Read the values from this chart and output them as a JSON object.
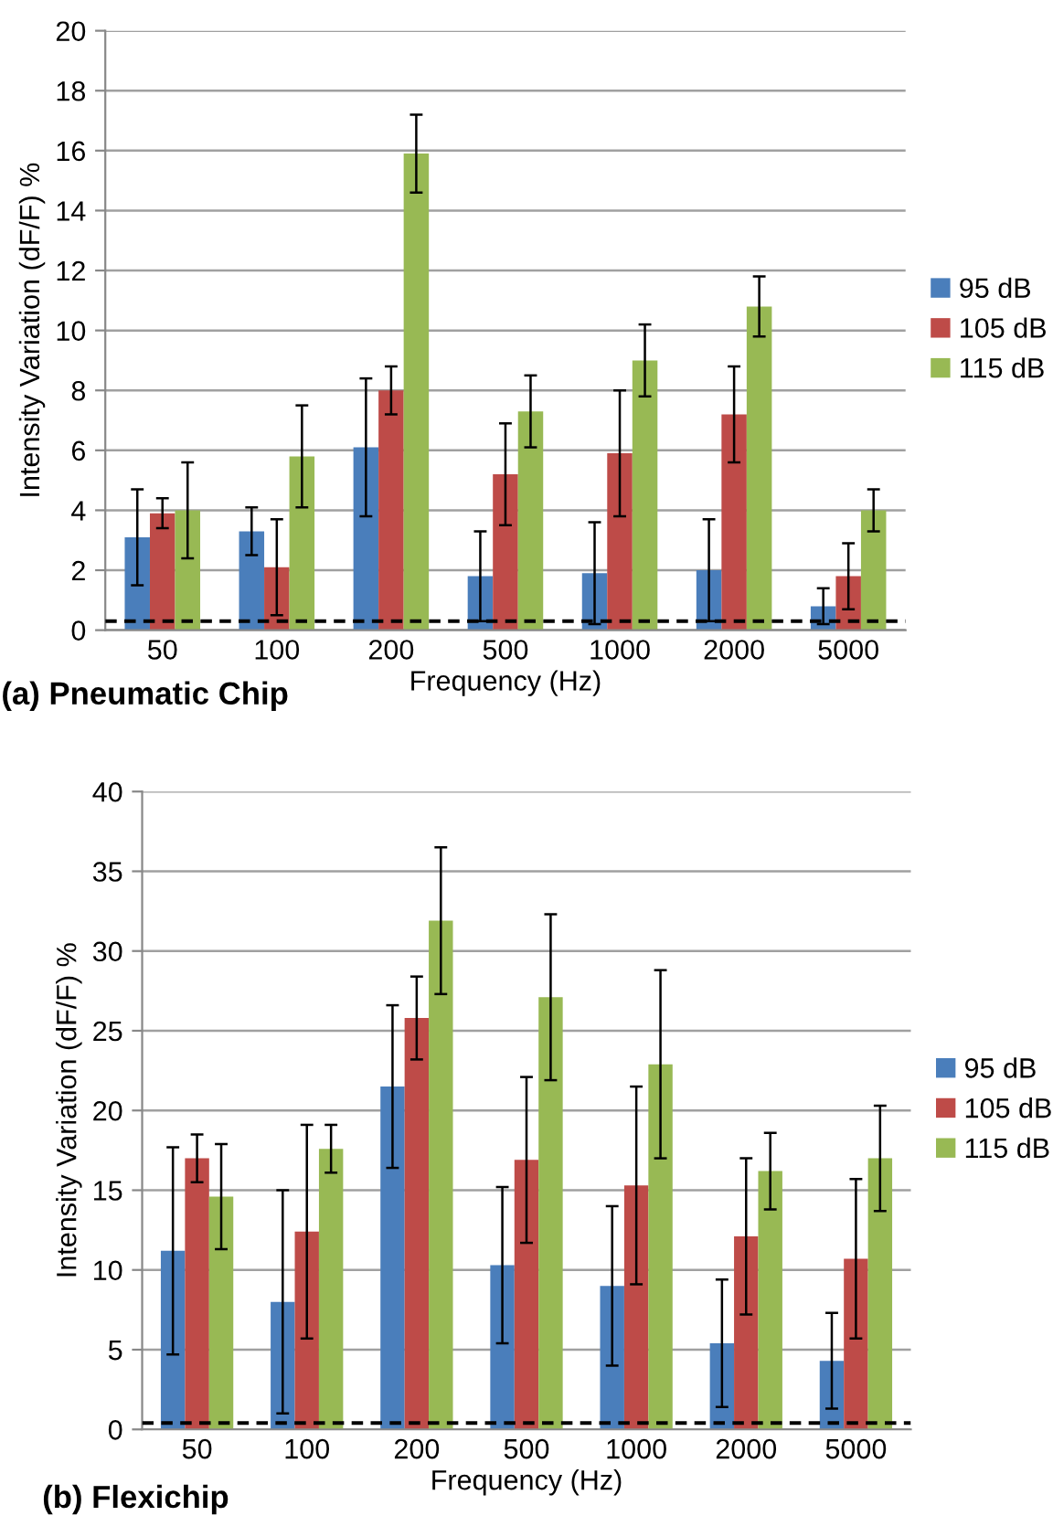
{
  "chart_data": [
    {
      "type": "bar",
      "title": "(a) Pneumatic Chip",
      "xlabel": "Frequency (Hz)",
      "ylabel": "Intensity Variation (dF/F) %",
      "categories": [
        "50",
        "100",
        "200",
        "500",
        "1000",
        "2000",
        "5000"
      ],
      "series": [
        {
          "name": "95 dB",
          "color": "#4a7ebb",
          "values": [
            3.1,
            3.3,
            6.1,
            1.8,
            1.9,
            2.0,
            0.8
          ],
          "errors": [
            1.6,
            0.8,
            2.3,
            1.5,
            1.7,
            1.7,
            0.6
          ]
        },
        {
          "name": "105 dB",
          "color": "#be4b48",
          "values": [
            3.9,
            2.1,
            8.0,
            5.2,
            5.9,
            7.2,
            1.8
          ],
          "errors": [
            0.5,
            1.6,
            0.8,
            1.7,
            2.1,
            1.6,
            1.1
          ]
        },
        {
          "name": "115 dB",
          "color": "#98b954",
          "values": [
            4.0,
            5.8,
            15.9,
            7.3,
            9.0,
            10.8,
            4.0
          ],
          "errors": [
            1.6,
            1.7,
            1.3,
            1.2,
            1.2,
            1.0,
            0.7
          ]
        }
      ],
      "ylim": [
        0,
        20
      ],
      "yticks": [
        0,
        2,
        4,
        6,
        8,
        10,
        12,
        14,
        16,
        18,
        20
      ],
      "grid": "y",
      "legend": "right",
      "ref_lines": [
        {
          "axis": "y",
          "value": 0.3,
          "color": "#000000",
          "line_style": "dashed"
        }
      ]
    },
    {
      "type": "bar",
      "title": "(b) Flexichip",
      "xlabel": "Frequency (Hz)",
      "ylabel": "Intensity Variation (dF/F) %",
      "categories": [
        "50",
        "100",
        "200",
        "500",
        "1000",
        "2000",
        "5000"
      ],
      "series": [
        {
          "name": "95 dB",
          "color": "#4a7ebb",
          "values": [
            11.2,
            8.0,
            21.5,
            10.3,
            9.0,
            5.4,
            4.3
          ],
          "errors": [
            6.5,
            7.0,
            5.1,
            4.9,
            5.0,
            4.0,
            3.0
          ]
        },
        {
          "name": "105 dB",
          "color": "#be4b48",
          "values": [
            17.0,
            12.4,
            25.8,
            16.9,
            15.3,
            12.1,
            10.7
          ],
          "errors": [
            1.5,
            6.7,
            2.6,
            5.2,
            6.2,
            4.9,
            5.0
          ]
        },
        {
          "name": "115 dB",
          "color": "#98b954",
          "values": [
            14.6,
            17.6,
            31.9,
            27.1,
            22.9,
            16.2,
            17.0
          ],
          "errors": [
            3.3,
            1.5,
            4.6,
            5.2,
            5.9,
            2.4,
            3.3
          ]
        }
      ],
      "ylim": [
        0,
        40
      ],
      "yticks": [
        0,
        5,
        10,
        15,
        20,
        25,
        30,
        35,
        40
      ],
      "grid": "y",
      "legend": "right",
      "ref_lines": [
        {
          "axis": "y",
          "value": 0.4,
          "color": "#000000",
          "line_style": "dashed"
        }
      ]
    }
  ]
}
